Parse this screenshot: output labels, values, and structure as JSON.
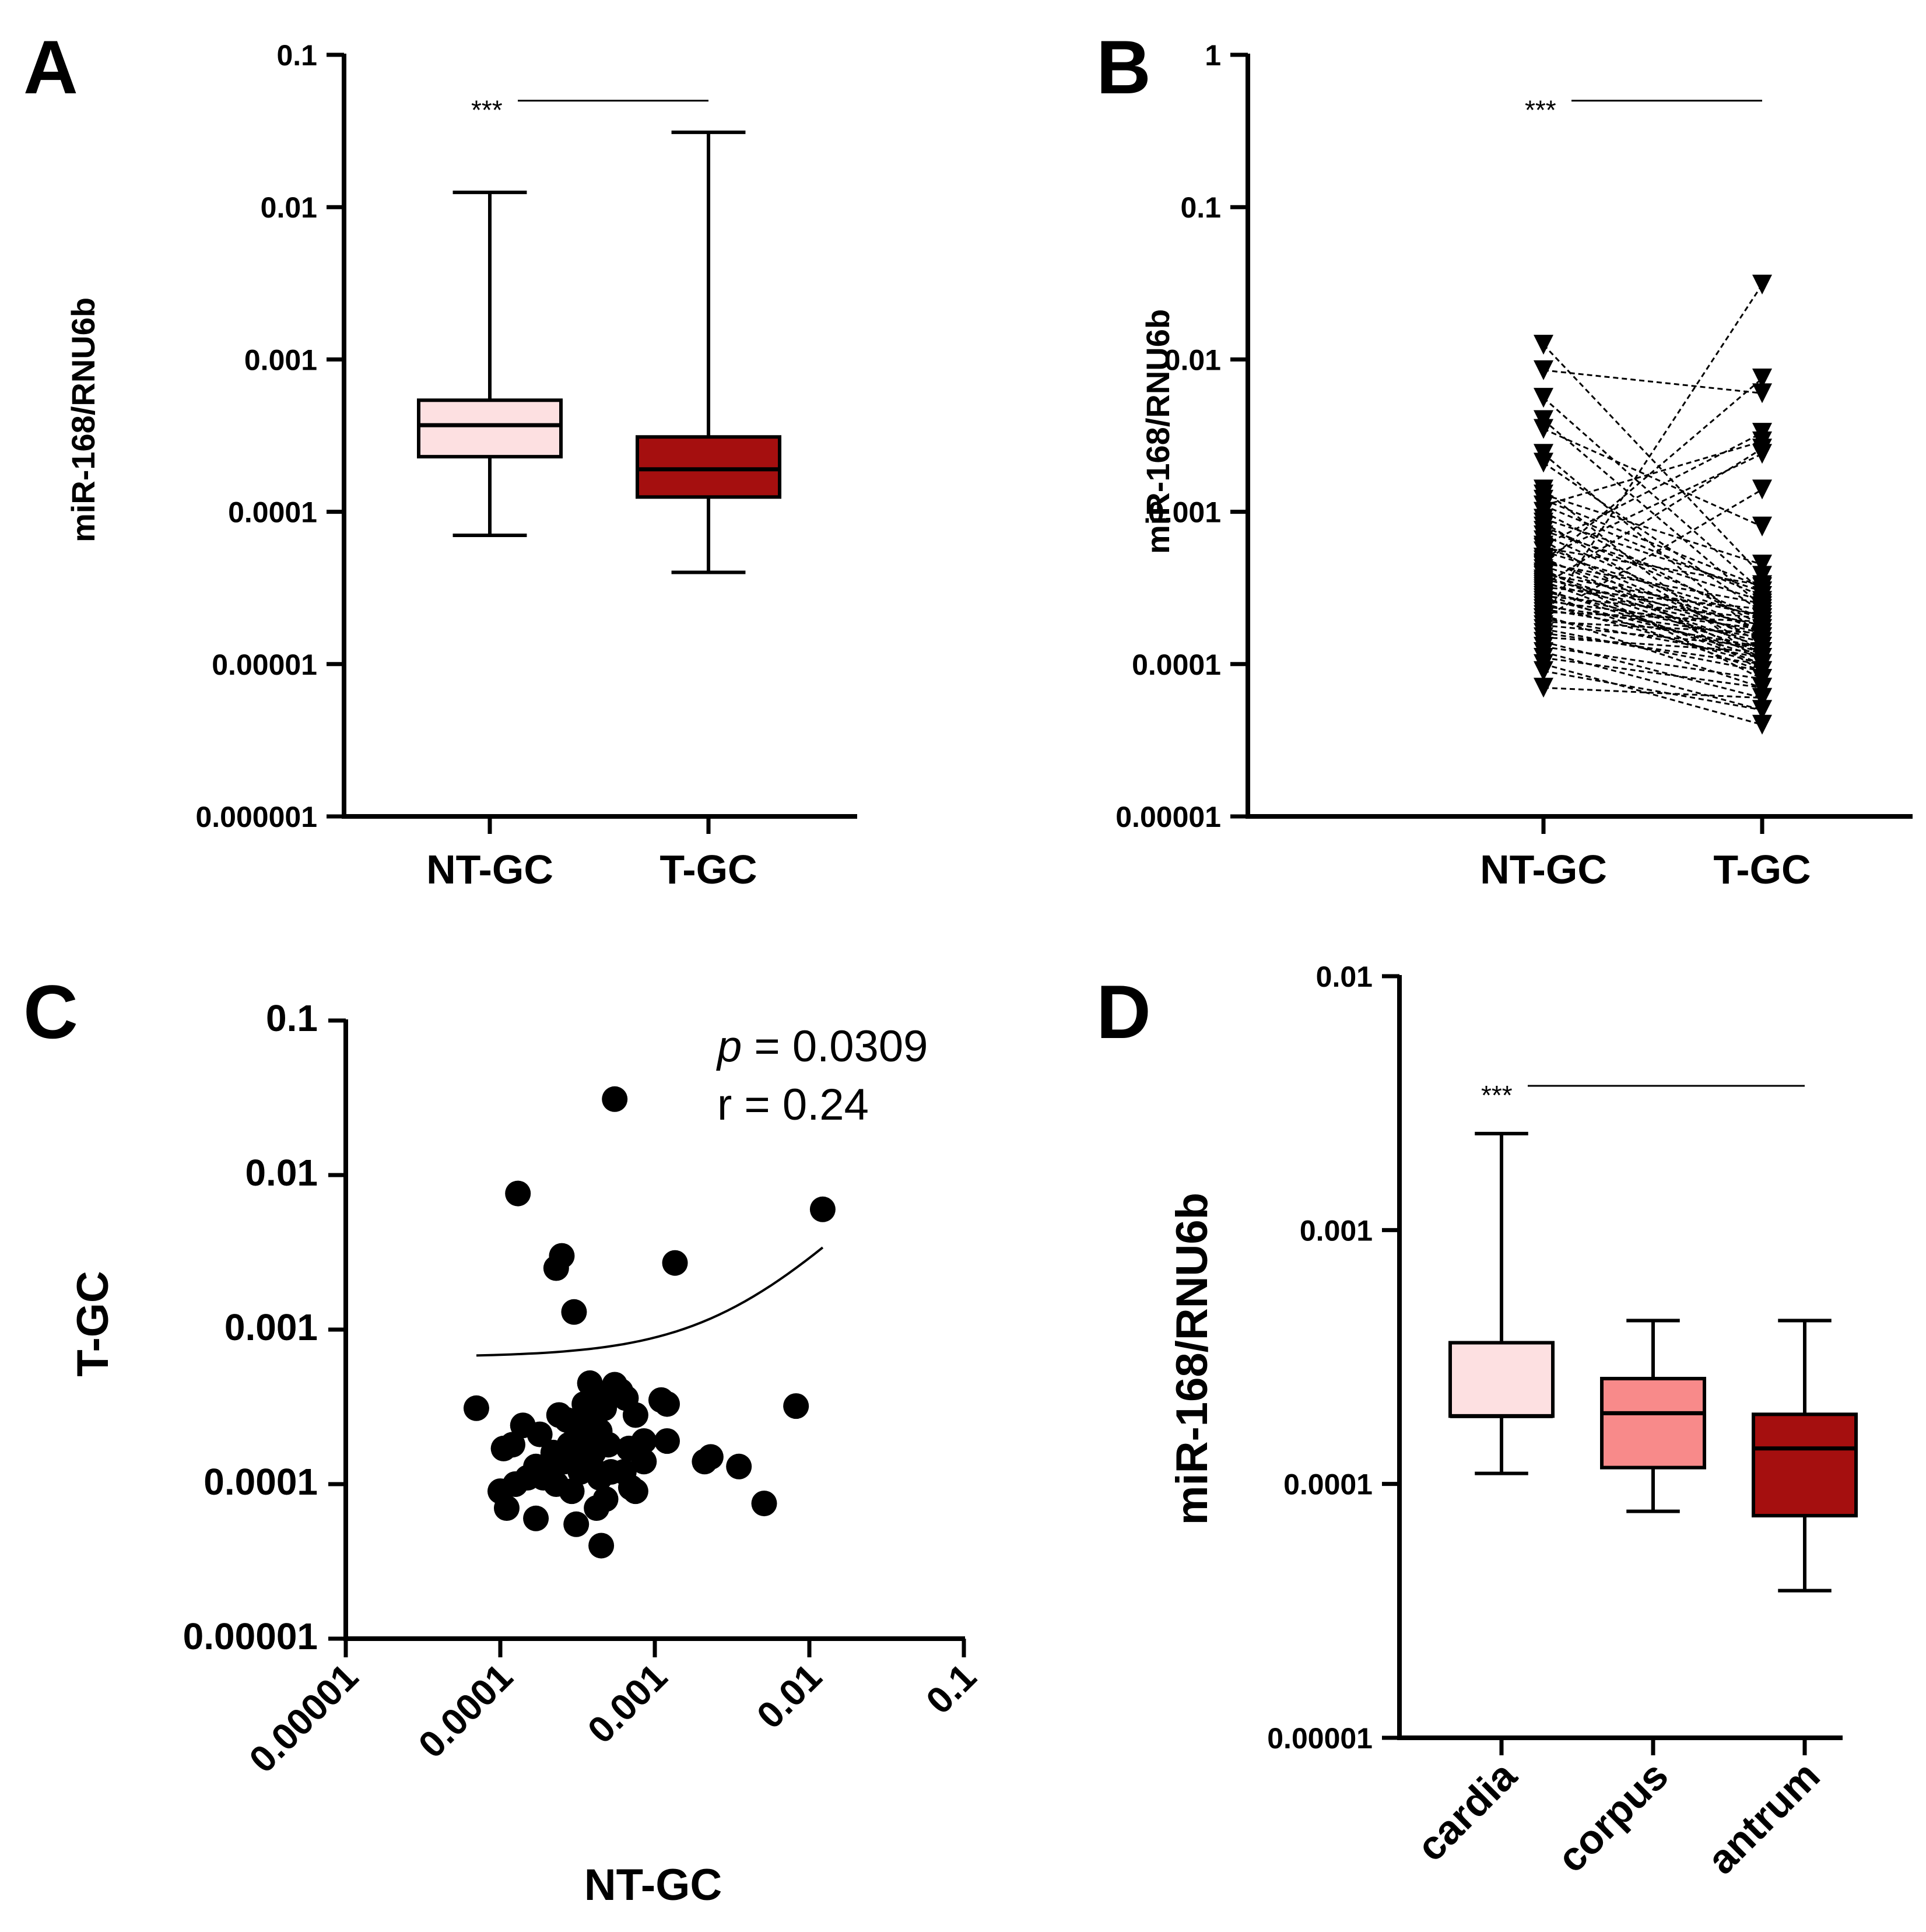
{
  "chart_data": [
    {
      "panel": "A",
      "type": "box",
      "ylabel": "miR-168/RNU6b",
      "yscale": "log",
      "ylim": [
        1e-06,
        0.1
      ],
      "yticks": [
        "0.1",
        "0.01",
        "0.001",
        "0.0001",
        "0.00001",
        "0.000001"
      ],
      "categories": [
        "NT-GC",
        "T-GC"
      ],
      "boxes": [
        {
          "name": "NT-GC",
          "min": 7e-05,
          "q1": 0.00023,
          "median": 0.00037,
          "q3": 0.00054,
          "max": 0.0125,
          "color": "#fde0e1"
        },
        {
          "name": "T-GC",
          "min": 4e-05,
          "q1": 0.000125,
          "median": 0.00019,
          "q3": 0.00031,
          "max": 0.031,
          "color": "#a50f0f"
        }
      ],
      "significance": {
        "label": "***",
        "y": 0.05
      }
    },
    {
      "panel": "B",
      "type": "paired",
      "ylabel": "miR-168/RNU6b",
      "yscale": "log",
      "ylim": [
        1e-05,
        1
      ],
      "yticks": [
        "1",
        "0.1",
        "0.01",
        "0.001",
        "0.0001",
        "0.00001"
      ],
      "categories": [
        "NT-GC",
        "T-GC"
      ],
      "pairs": [
        [
          0.0125,
          0.00038
        ],
        [
          0.0085,
          0.006
        ],
        [
          0.0056,
          0.0003
        ],
        [
          0.004,
          0.00024
        ],
        [
          0.0035,
          0.0008
        ],
        [
          0.0024,
          0.00015
        ],
        [
          0.0021,
          0.00022
        ],
        [
          0.0014,
          0.0001
        ],
        [
          0.0013,
          0.00045
        ],
        [
          0.0012,
          0.00032
        ],
        [
          0.0011,
          0.00028
        ],
        [
          0.001,
          0.00018
        ],
        [
          0.0009,
          0.0003
        ],
        [
          0.00085,
          0.00012
        ],
        [
          0.0008,
          0.0002
        ],
        [
          0.00075,
          0.00026
        ],
        [
          0.0007,
          0.00016
        ],
        [
          0.00065,
          9e-05
        ],
        [
          0.0006,
          0.00014
        ],
        [
          0.00058,
          0.00033
        ],
        [
          0.00055,
          0.0002
        ],
        [
          0.0005,
          0.00011
        ],
        [
          0.00048,
          0.00017
        ],
        [
          0.00046,
          0.00025
        ],
        [
          0.00044,
          0.00015
        ],
        [
          0.00042,
          8e-05
        ],
        [
          0.0004,
          0.00013
        ],
        [
          0.00039,
          0.00021
        ],
        [
          0.00038,
          0.00012
        ],
        [
          0.00036,
          0.00018
        ],
        [
          0.00035,
          0.0001
        ],
        [
          0.00034,
          0.00016
        ],
        [
          0.00032,
          0.00023
        ],
        [
          0.00031,
          0.00011
        ],
        [
          0.0003,
          0.00014
        ],
        [
          0.00029,
          9e-05
        ],
        [
          0.00028,
          0.0002
        ],
        [
          0.00027,
          0.00012
        ],
        [
          0.00026,
          0.00017
        ],
        [
          0.00025,
          0.0001
        ],
        [
          0.00024,
          0.00015
        ],
        [
          0.00023,
          0.00013
        ],
        [
          0.00022,
          0.00019
        ],
        [
          0.00021,
          7e-05
        ],
        [
          0.0002,
          0.00011
        ],
        [
          0.00019,
          0.00016
        ],
        [
          0.00018,
          0.00013
        ],
        [
          0.00017,
          9e-05
        ],
        [
          0.00016,
          0.0001
        ],
        [
          0.00015,
          0.00012
        ],
        [
          0.00014,
          6e-05
        ],
        [
          0.00013,
          8e-05
        ],
        [
          0.00012,
          5e-05
        ],
        [
          0.00011,
          7e-05
        ],
        [
          0.0001,
          4e-05
        ],
        [
          9e-05,
          5e-05
        ],
        [
          7e-05,
          6e-05
        ],
        [
          0.0002,
          0.031
        ],
        [
          0.0006,
          0.0033
        ],
        [
          0.0011,
          0.0029
        ],
        [
          0.0005,
          0.0024
        ],
        [
          0.0002,
          0.0014
        ],
        [
          0.00033,
          0.0026
        ],
        [
          0.00045,
          0.0075
        ]
      ],
      "significance": {
        "label": "***",
        "y": 0.5
      }
    },
    {
      "panel": "C",
      "type": "scatter",
      "xlabel": "NT-GC",
      "ylabel": "T-GC",
      "xscale": "log",
      "yscale": "log",
      "xlim": [
        1e-05,
        0.1
      ],
      "ylim": [
        1e-05,
        0.1
      ],
      "xticks": [
        "0.00001",
        "0.0001",
        "0.001",
        "0.01",
        "0.1"
      ],
      "yticks": [
        "0.1",
        "0.01",
        "0.001",
        "0.0001",
        "0.00001"
      ],
      "annotation": {
        "p_label": "p",
        "p_value": " = 0.0309",
        "r_text": "r = 0.24"
      },
      "points": [
        [
          0.00055,
          0.031
        ],
        [
          0.00013,
          0.0076
        ],
        [
          0.0122,
          0.006
        ],
        [
          0.00025,
          0.003
        ],
        [
          0.00023,
          0.0025
        ],
        [
          0.00135,
          0.0027
        ],
        [
          0.0003,
          0.0013
        ],
        [
          7e-05,
          0.00031
        ],
        [
          0.0082,
          0.00032
        ],
        [
          0.00014,
          0.00024
        ],
        [
          0.00012,
          0.00018
        ],
        [
          0.000105,
          0.00017
        ],
        [
          0.00018,
          0.00021
        ],
        [
          0.00024,
          0.00028
        ],
        [
          0.00027,
          0.00026
        ],
        [
          0.00035,
          0.00033
        ],
        [
          0.00038,
          0.00045
        ],
        [
          0.00042,
          0.00037
        ],
        [
          0.00047,
          0.00031
        ],
        [
          0.00055,
          0.00044
        ],
        [
          0.0006,
          0.0004
        ],
        [
          0.00065,
          0.00036
        ],
        [
          0.00075,
          0.00028
        ],
        [
          0.0011,
          0.00035
        ],
        [
          0.0012,
          0.00033
        ],
        [
          0.0012,
          0.00019
        ],
        [
          0.00085,
          0.00019
        ],
        [
          0.00068,
          0.00017
        ],
        [
          0.0005,
          0.00018
        ],
        [
          0.0004,
          0.00016
        ],
        [
          0.00036,
          0.00021
        ],
        [
          0.00032,
          0.00015
        ],
        [
          0.00028,
          0.00018
        ],
        [
          0.00026,
          0.00014
        ],
        [
          0.00022,
          0.00016
        ],
        [
          0.0002,
          0.00012
        ],
        [
          0.00017,
          0.00013
        ],
        [
          0.00015,
          0.00011
        ],
        [
          0.0001,
          9e-05
        ],
        [
          0.00011,
          7e-05
        ],
        [
          0.000125,
          0.0001
        ],
        [
          0.00019,
          0.00011
        ],
        [
          0.00023,
          0.0001
        ],
        [
          0.00029,
          9e-05
        ],
        [
          0.00033,
          0.00012
        ],
        [
          0.00039,
          0.00013
        ],
        [
          0.00044,
          0.00011
        ],
        [
          0.00052,
          0.00012
        ],
        [
          0.00063,
          0.00012
        ],
        [
          0.0007,
          9.5e-05
        ],
        [
          0.00085,
          0.00014
        ],
        [
          0.00075,
          9e-05
        ],
        [
          0.00042,
          7e-05
        ],
        [
          0.00048,
          8e-05
        ],
        [
          0.00031,
          5.5e-05
        ],
        [
          0.00017,
          6e-05
        ],
        [
          0.00045,
          4e-05
        ],
        [
          0.0021,
          0.00014
        ],
        [
          0.0023,
          0.00015
        ],
        [
          0.0035,
          0.00013
        ],
        [
          0.0051,
          7.5e-05
        ],
        [
          0.00037,
          0.00025
        ],
        [
          0.00044,
          0.00022
        ],
        [
          0.0003,
          0.00019
        ]
      ],
      "fit": {
        "from": 7e-05,
        "to": 0.0122,
        "y_start": 0.00068,
        "y_end": 0.0034
      }
    },
    {
      "panel": "D",
      "type": "box",
      "ylabel": "miR-168/RNU6b",
      "yscale": "log",
      "ylim": [
        1e-05,
        0.01
      ],
      "yticks": [
        "0.01",
        "0.001",
        "0.0001",
        "0.00001"
      ],
      "categories": [
        "cardia",
        "corpus",
        "antrum"
      ],
      "boxes": [
        {
          "name": "cardia",
          "min": 0.00011,
          "q1": 0.000185,
          "median": 0.000185,
          "q3": 0.00036,
          "max": 0.0024,
          "color": "#fde0e1"
        },
        {
          "name": "corpus",
          "min": 7.8e-05,
          "q1": 0.000116,
          "median": 0.00019,
          "q3": 0.00026,
          "max": 0.00044,
          "color": "#f88a8a"
        },
        {
          "name": "antrum",
          "min": 3.8e-05,
          "q1": 7.5e-05,
          "median": 0.000138,
          "q3": 0.000188,
          "max": 0.00044,
          "color": "#a50f0f"
        }
      ],
      "significance": {
        "label": "***",
        "y": 0.0037
      }
    }
  ]
}
